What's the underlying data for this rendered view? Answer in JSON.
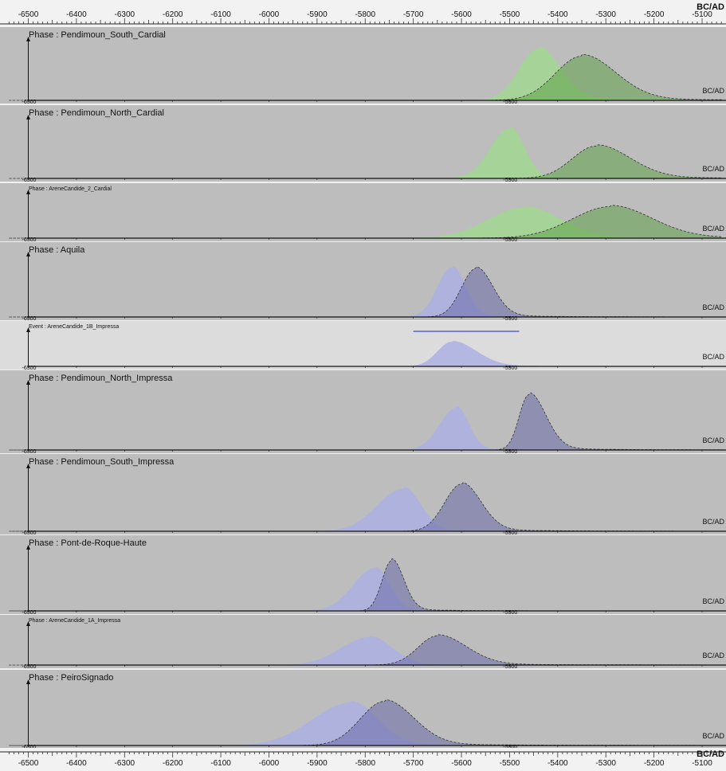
{
  "axis_unit": "BC/AD",
  "top_axis_ticks": [
    -6500,
    -6400,
    -6300,
    -6200,
    -6100,
    -6000,
    -5900,
    -5800,
    -5700,
    -5600,
    -5500,
    -5400,
    -5300,
    -5200,
    -5100
  ],
  "panel_axis_unit": "BC/AD",
  "colors": {
    "panel_bg": "#bdbdbd",
    "event_bg": "#dcdcdc",
    "green_prior": "#a2d790",
    "green_post": "#5fa048",
    "blue_prior": "#aeb0e4",
    "blue_post": "#6a6ba8",
    "event_bar": "#7a7ed6"
  },
  "chart_data": {
    "type": "area",
    "xlabel": "BC/AD",
    "xlim": [
      -6540,
      -5060
    ],
    "panels": [
      {
        "label": "Phase : Pendimoun_South_Cardial",
        "group": "cardial",
        "mini_ticks": [
          -6500,
          -5500
        ],
        "series": [
          {
            "kind": "prior",
            "mode": -5440,
            "sl": 40,
            "sr": 45,
            "h": 0.88
          },
          {
            "kind": "posterior",
            "mode": -5350,
            "sl": 55,
            "sr": 70,
            "h": 0.75
          }
        ]
      },
      {
        "label": "Phase : Pendimoun_North_Cardial",
        "group": "cardial",
        "mini_ticks": [
          -6500,
          -5500
        ],
        "series": [
          {
            "kind": "prior",
            "mode": -5500,
            "sl": 40,
            "sr": 30,
            "h": 0.85
          },
          {
            "kind": "posterior",
            "mode": -5320,
            "sl": 50,
            "sr": 70,
            "h": 0.55
          }
        ]
      },
      {
        "label": "Phase : AreneCandide_2_Cardial",
        "group": "cardial",
        "mini_ticks": [
          -6500,
          -5500
        ],
        "series": [
          {
            "kind": "prior",
            "mode": -5470,
            "sl": 75,
            "sr": 75,
            "h": 0.7
          },
          {
            "kind": "posterior",
            "mode": -5290,
            "sl": 80,
            "sr": 85,
            "h": 0.72
          }
        ]
      },
      {
        "label": "Phase : Aquila",
        "group": "impressa",
        "mini_ticks": [
          -6500,
          -5500
        ],
        "series": [
          {
            "kind": "prior",
            "mode": -5620,
            "sl": 30,
            "sr": 28,
            "h": 0.82
          },
          {
            "kind": "posterior",
            "mode": -5570,
            "sl": 30,
            "sr": 35,
            "h": 0.8
          }
        ]
      },
      {
        "label": "Event : AreneCandide_1B_Impressa",
        "group": "event",
        "mini_ticks": [
          -6500,
          -5500
        ],
        "event_range": [
          -5700,
          -5480
        ],
        "series": [
          {
            "kind": "prior",
            "mode": -5620,
            "sl": 30,
            "sr": 50,
            "h": 0.72
          }
        ]
      },
      {
        "label": "Phase : Pendimoun_North_Impressa",
        "group": "impressa",
        "mini_ticks": [
          -6500,
          -5500
        ],
        "series": [
          {
            "kind": "prior",
            "mode": -5610,
            "sl": 35,
            "sr": 25,
            "h": 0.65
          },
          {
            "kind": "posterior",
            "mode": -5460,
            "sl": 20,
            "sr": 35,
            "h": 0.85
          }
        ]
      },
      {
        "label": "Phase : Pendimoun_South_Impressa",
        "group": "impressa",
        "mini_ticks": [
          -6500,
          -5500
        ],
        "series": [
          {
            "kind": "prior",
            "mode": -5720,
            "sl": 55,
            "sr": 35,
            "h": 0.68
          },
          {
            "kind": "posterior",
            "mode": -5600,
            "sl": 35,
            "sr": 40,
            "h": 0.75
          }
        ]
      },
      {
        "label": "Phase : Pont-de-Roque-Haute",
        "group": "impressa",
        "mini_ticks": [
          -6500,
          -5500
        ],
        "series": [
          {
            "kind": "prior",
            "mode": -5780,
            "sl": 45,
            "sr": 30,
            "h": 0.7
          },
          {
            "kind": "posterior",
            "mode": -5745,
            "sl": 20,
            "sr": 25,
            "h": 0.82
          }
        ]
      },
      {
        "label": "Phase : AreneCandide_1A_Impressa",
        "group": "impressa",
        "mini_ticks": [
          -6500,
          -5500
        ],
        "series": [
          {
            "kind": "prior",
            "mode": -5790,
            "sl": 60,
            "sr": 45,
            "h": 0.72
          },
          {
            "kind": "posterior",
            "mode": -5650,
            "sl": 40,
            "sr": 60,
            "h": 0.75
          }
        ]
      },
      {
        "label": "Phase : PeiroSignado",
        "group": "impressa",
        "mini_ticks": [
          -6500,
          -5500
        ],
        "series": [
          {
            "kind": "prior",
            "mode": -5830,
            "sl": 80,
            "sr": 55,
            "h": 0.7
          },
          {
            "kind": "posterior",
            "mode": -5760,
            "sl": 50,
            "sr": 60,
            "h": 0.72
          }
        ]
      }
    ]
  }
}
